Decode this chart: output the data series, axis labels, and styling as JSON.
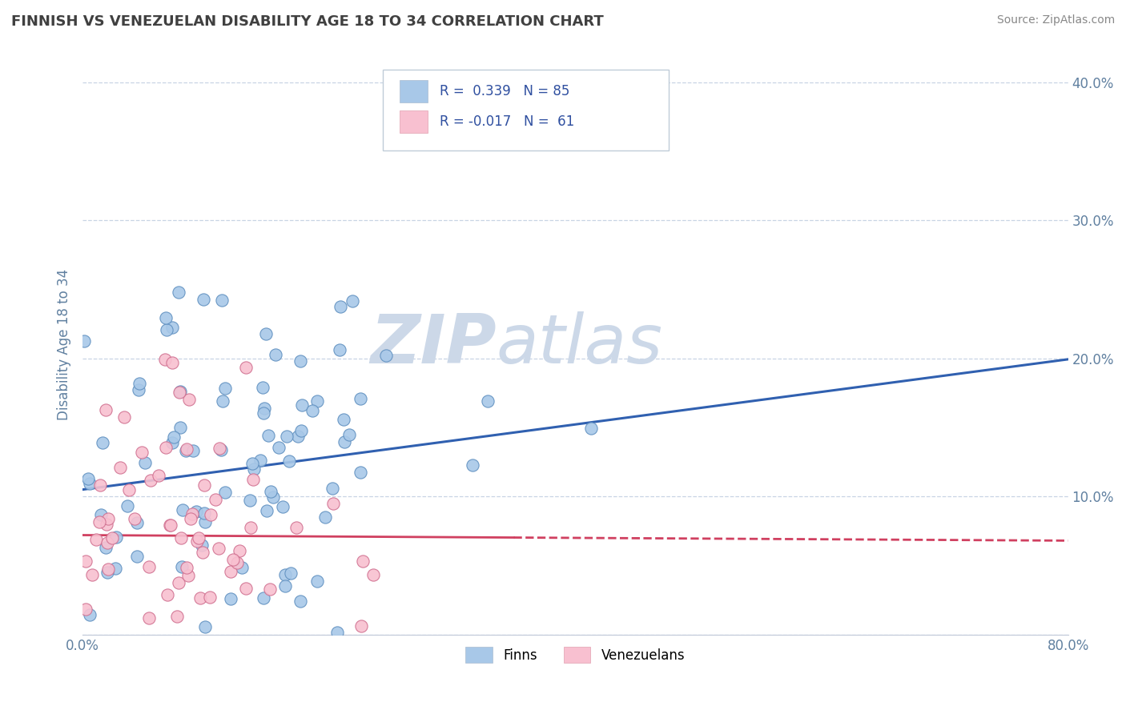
{
  "title": "FINNISH VS VENEZUELAN DISABILITY AGE 18 TO 34 CORRELATION CHART",
  "source_text": "Source: ZipAtlas.com",
  "ylabel": "Disability Age 18 to 34",
  "xlim": [
    0.0,
    0.8
  ],
  "ylim": [
    0.0,
    0.42
  ],
  "xticks": [
    0.0,
    0.1,
    0.2,
    0.3,
    0.4,
    0.5,
    0.6,
    0.7,
    0.8
  ],
  "yticks": [
    0.0,
    0.1,
    0.2,
    0.3,
    0.4
  ],
  "xtick_labels": [
    "0.0%",
    "",
    "",
    "",
    "",
    "",
    "",
    "",
    "80.0%"
  ],
  "ytick_labels_right": [
    "",
    "10.0%",
    "20.0%",
    "30.0%",
    "40.0%"
  ],
  "finn_color": "#a8c8e8",
  "finn_edge_color": "#6090c0",
  "finn_line_color": "#3060b0",
  "venezuelan_color": "#f8c0d0",
  "venezuelan_edge_color": "#d07090",
  "venezuelan_line_color": "#d04060",
  "watermark_zip": "ZIP",
  "watermark_atlas": "atlas",
  "watermark_color": "#ccd8e8",
  "finn_R": 0.339,
  "finn_N": 85,
  "venezuelan_R": -0.017,
  "venezuelan_N": 61,
  "background_color": "#ffffff",
  "grid_color": "#c8d4e4",
  "title_color": "#404040",
  "axis_label_color": "#6080a0",
  "tick_color": "#6080a0",
  "legend_text_color": "#3050a0",
  "finn_intercept": 0.105,
  "finn_slope": 0.118,
  "venez_intercept": 0.072,
  "venez_slope": -0.005
}
